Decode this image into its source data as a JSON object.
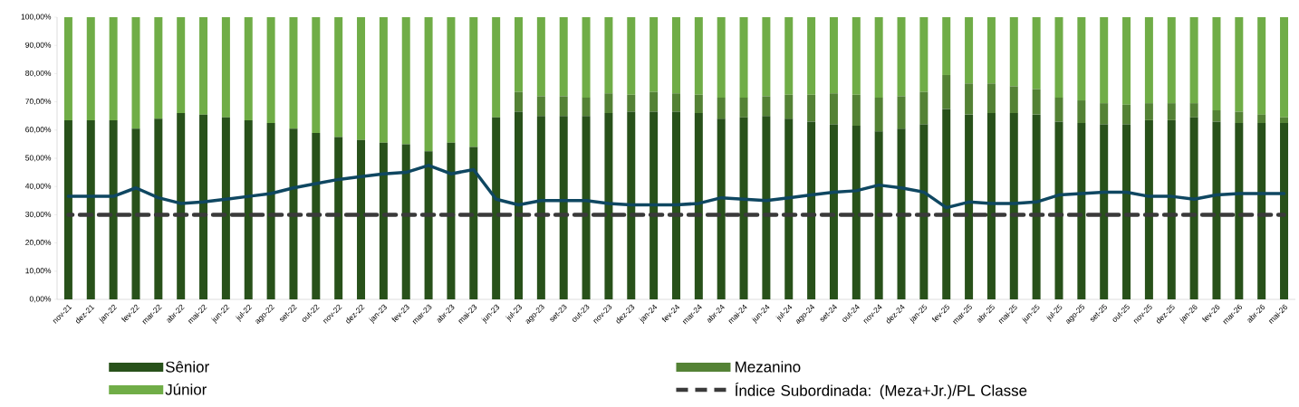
{
  "chart_data": {
    "type": "bar",
    "stacked": true,
    "legend": "bottom",
    "categories": [
      "nov-21",
      "dez-21",
      "jan-22",
      "fev-22",
      "mar-22",
      "abr-22",
      "mai-22",
      "jun-22",
      "jul-22",
      "ago-22",
      "set-22",
      "out-22",
      "nov-22",
      "dez-22",
      "jan-23",
      "fev-23",
      "mar-23",
      "abr-23",
      "mai-23",
      "jun-23",
      "jul-23",
      "ago-23",
      "set-23",
      "out-23",
      "nov-23",
      "dez-23",
      "jan-24",
      "fev-24",
      "mar-24",
      "abr-24",
      "mai-24",
      "jun-24",
      "jul-24",
      "ago-24",
      "set-24",
      "out-24",
      "nov-24",
      "dez-24",
      "jan-25",
      "fev-25",
      "mar-25",
      "abr-25",
      "mai-25",
      "jun-25",
      "jul-25",
      "ago-25",
      "set-25",
      "out-25",
      "nov-25",
      "dez-25",
      "jan-26",
      "fev-26",
      "mar-26",
      "abr-26",
      "mai-26"
    ],
    "ylim": [
      0,
      100
    ],
    "yticks": [
      {
        "value": 0,
        "label": "0,00%"
      },
      {
        "value": 10,
        "label": "10,00%"
      },
      {
        "value": 20,
        "label": "20,00%"
      },
      {
        "value": 30,
        "label": "30,00%"
      },
      {
        "value": 40,
        "label": "40,00%"
      },
      {
        "value": 50,
        "label": "50,00%"
      },
      {
        "value": 60,
        "label": "60,00%"
      },
      {
        "value": 70,
        "label": "70,00%"
      },
      {
        "value": 80,
        "label": "80,00%"
      },
      {
        "value": 90,
        "label": "90,00%"
      },
      {
        "value": 100,
        "label": "100,00%"
      }
    ],
    "series": [
      {
        "name": "Sênior",
        "color": "#28511a",
        "values": [
          63.5,
          63.5,
          63.5,
          60.5,
          64,
          66,
          65.5,
          64.5,
          63.5,
          62.5,
          60.5,
          59,
          57.5,
          56.5,
          55.5,
          55,
          52.5,
          55.5,
          54,
          64.5,
          66.5,
          65,
          65,
          65,
          66,
          66.5,
          66.5,
          66.5,
          66,
          64,
          64.5,
          65,
          64,
          63,
          62,
          61.5,
          59.5,
          60.5,
          62,
          67.5,
          65.5,
          66,
          66,
          65.5,
          63,
          62.5,
          62,
          62,
          63.5,
          63.5,
          64.5,
          63,
          62.5,
          62.5,
          62.5
        ]
      },
      {
        "name": "Mezanino",
        "color": "#548235",
        "values": [
          0,
          0,
          0,
          0,
          0,
          0,
          0,
          0,
          0,
          0,
          0,
          0,
          0,
          0,
          0,
          0,
          0,
          0,
          0,
          0,
          7,
          7,
          7,
          6.5,
          7,
          6,
          7,
          6.5,
          6.5,
          7.5,
          7,
          7,
          8.5,
          9.5,
          11,
          11,
          12,
          11.5,
          11.5,
          12,
          11,
          10.5,
          9.5,
          9,
          8.5,
          8,
          7.5,
          7,
          6,
          6,
          5,
          4,
          4,
          3,
          2
        ]
      },
      {
        "name": "Júnior",
        "color": "#70ad47",
        "values": [
          36.5,
          36.5,
          36.5,
          39.5,
          36,
          34,
          34.5,
          35.5,
          36.5,
          37.5,
          39.5,
          41,
          42.5,
          43.5,
          44.5,
          45,
          47.5,
          44.5,
          46,
          35.5,
          26.5,
          28,
          28,
          28.5,
          27,
          27.5,
          26.5,
          27,
          27.5,
          28.5,
          28.5,
          28,
          27.5,
          27.5,
          27,
          27.5,
          28.5,
          28,
          26.5,
          20.5,
          23.5,
          23.5,
          24.5,
          25.5,
          28.5,
          29.5,
          30.5,
          31,
          30.5,
          30.5,
          30.5,
          33,
          33.5,
          34.5,
          35.5
        ]
      },
      {
        "name": "Índice Subordinada: (Meza+Jr.)/PL Classe",
        "type": "line",
        "line_style": "dashed",
        "color": "#3a3a3a",
        "values": [
          30,
          30,
          30,
          30,
          30,
          30,
          30,
          30,
          30,
          30,
          30,
          30,
          30,
          30,
          30,
          30,
          30,
          30,
          30,
          30,
          30,
          30,
          30,
          30,
          30,
          30,
          30,
          30,
          30,
          30,
          30,
          30,
          30,
          30,
          30,
          30,
          30,
          30,
          30,
          30,
          30,
          30,
          30,
          30,
          30,
          30,
          30,
          30,
          30,
          30,
          30,
          30,
          30,
          30,
          30
        ]
      },
      {
        "type": "line",
        "line_style": "solid",
        "color": "#0f4761",
        "values": [
          36.5,
          36.5,
          36.5,
          39.5,
          36,
          34,
          34.5,
          35.5,
          36.5,
          37.5,
          39.5,
          41,
          42.5,
          43.5,
          44.5,
          45,
          47.5,
          44.5,
          46,
          35.5,
          33.5,
          35,
          35,
          35,
          34,
          33.5,
          33.5,
          33.5,
          34,
          36,
          35.5,
          35,
          36,
          37,
          38,
          38.5,
          40.5,
          39.5,
          38,
          32.5,
          34.5,
          34,
          34,
          34.5,
          37,
          37.5,
          38,
          38,
          36.5,
          36.5,
          35.5,
          37,
          37.5,
          37.5,
          37.5
        ]
      }
    ]
  }
}
